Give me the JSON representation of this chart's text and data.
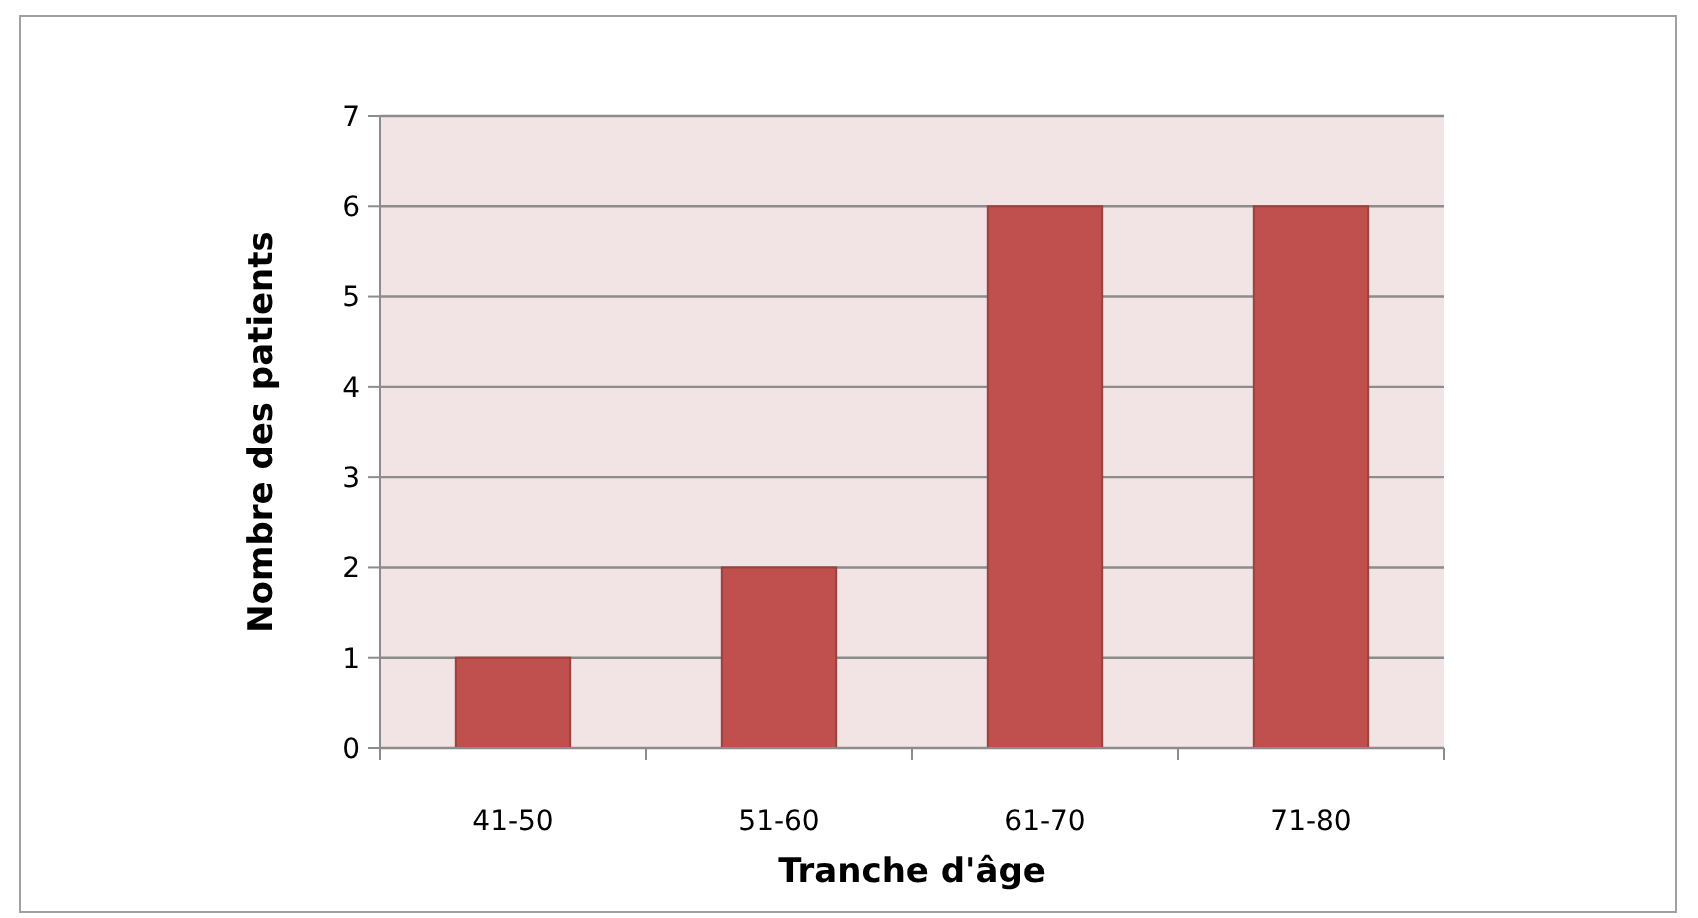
{
  "chart_data": {
    "type": "bar",
    "xlabel": "Tranche d'âge",
    "ylabel": "Nombre des patients",
    "categories": [
      "41-50",
      "51-60",
      "61-70",
      "71-80"
    ],
    "values": [
      1,
      2,
      6,
      6
    ],
    "color": "#c0504d",
    "ylim": [
      0,
      7
    ],
    "yticks": [
      0,
      1,
      2,
      3,
      4,
      5,
      6,
      7
    ],
    "grid": "y"
  }
}
